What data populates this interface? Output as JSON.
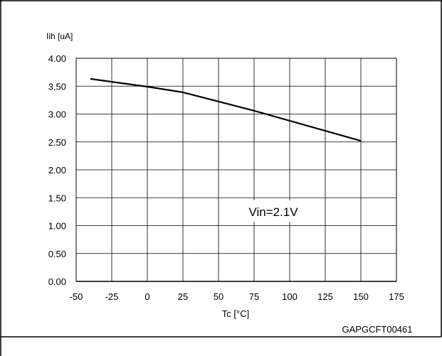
{
  "chart_data": {
    "type": "line",
    "ylabel": "Iih [uA]",
    "xlabel": "Tc [°C]",
    "x_ticks": [
      "-50",
      "-25",
      "0",
      "25",
      "50",
      "75",
      "100",
      "125",
      "150",
      "175"
    ],
    "y_ticks": [
      "0.00",
      "0.50",
      "1.00",
      "1.50",
      "2.00",
      "2.50",
      "3.00",
      "3.50",
      "4.00"
    ],
    "xlim": [
      -50,
      175
    ],
    "ylim": [
      0,
      4
    ],
    "grid": true,
    "series": [
      {
        "x": [
          -40,
          0,
          25,
          75,
          150
        ],
        "y": [
          3.63,
          3.49,
          3.39,
          3.06,
          2.52
        ]
      }
    ],
    "annotation": "Vin=2.1V",
    "figure_code": "GAPGCFT00461",
    "line_color": "#000000",
    "grid_color": "#000000"
  }
}
